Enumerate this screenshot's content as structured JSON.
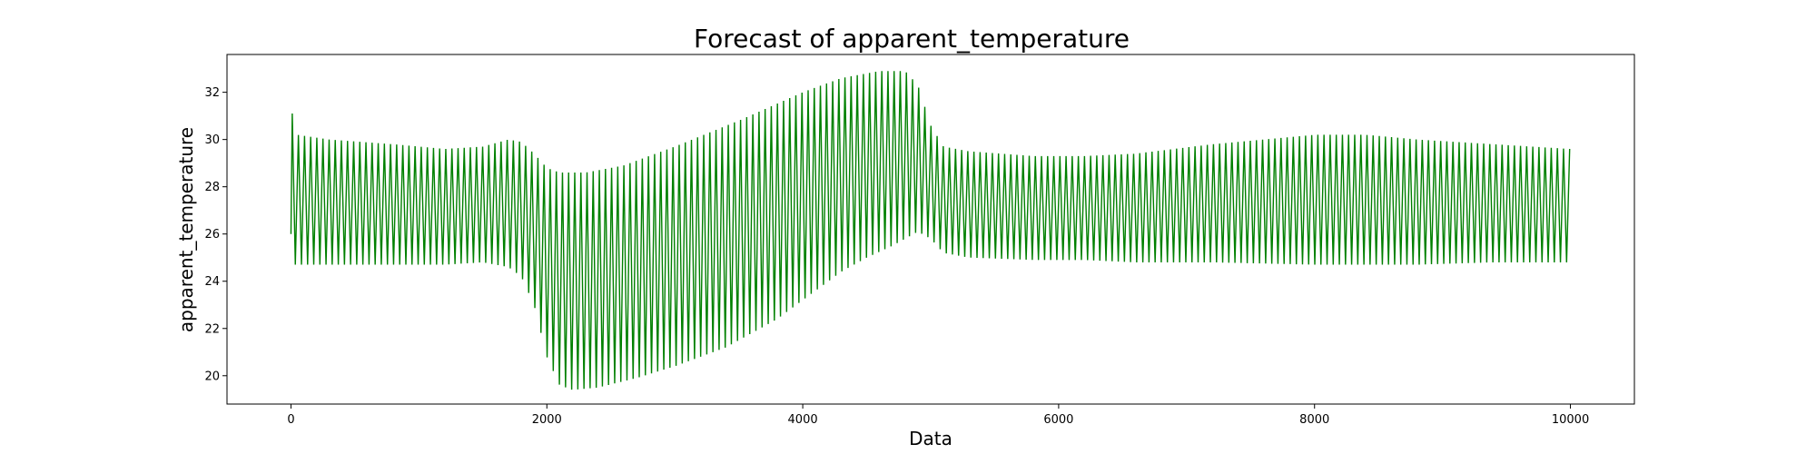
{
  "chart_data": {
    "type": "line",
    "title": "Forecast of apparent_temperature",
    "xlabel": "Data",
    "ylabel": "apparent_temperature",
    "xlim": [
      -500,
      10500
    ],
    "ylim": [
      18.8,
      33.6
    ],
    "x_ticks": [
      0,
      2000,
      4000,
      6000,
      8000,
      10000
    ],
    "x_tick_labels": [
      "0",
      "2000",
      "4000",
      "6000",
      "8000",
      "10000"
    ],
    "y_ticks": [
      20,
      22,
      24,
      26,
      28,
      30,
      32
    ],
    "y_tick_labels": [
      "20",
      "22",
      "24",
      "26",
      "28",
      "30",
      "32"
    ],
    "grid": false,
    "legend": "none",
    "series": [
      {
        "color": "#008000",
        "oscillation_period": 48,
        "upper_envelope": {
          "x": [
            0,
            10,
            30,
            50,
            300,
            800,
            1200,
            1500,
            1700,
            1800,
            1900,
            2000,
            2100,
            2300,
            2600,
            3000,
            3500,
            4000,
            4300,
            4600,
            4800,
            4900,
            5000,
            5100,
            5300,
            5800,
            6200,
            6600,
            7200,
            8000,
            8400,
            8800,
            9400,
            10000
          ],
          "y": [
            26.0,
            31.1,
            30.3,
            30.2,
            30.0,
            29.8,
            29.6,
            29.7,
            30.0,
            29.9,
            29.4,
            28.8,
            28.6,
            28.6,
            28.9,
            29.7,
            30.8,
            32.0,
            32.6,
            32.9,
            32.9,
            32.3,
            30.6,
            29.7,
            29.5,
            29.3,
            29.3,
            29.4,
            29.8,
            30.2,
            30.2,
            30.0,
            29.8,
            29.6
          ]
        },
        "lower_envelope": {
          "x": [
            0,
            10,
            30,
            50,
            300,
            800,
            1200,
            1500,
            1700,
            1800,
            1900,
            2000,
            2100,
            2200,
            2400,
            2700,
            3000,
            3400,
            3800,
            4100,
            4300,
            4500,
            4700,
            4800,
            4900,
            5000,
            5100,
            5300,
            5800,
            6200,
            6600,
            7200,
            8000,
            8400,
            8800,
            9400,
            10000
          ],
          "y": [
            26.0,
            24.6,
            24.7,
            24.7,
            24.7,
            24.7,
            24.7,
            24.8,
            24.6,
            24.2,
            23.0,
            20.8,
            19.6,
            19.4,
            19.5,
            19.9,
            20.4,
            21.2,
            22.4,
            23.6,
            24.4,
            25.0,
            25.5,
            25.8,
            26.1,
            25.8,
            25.2,
            25.0,
            24.9,
            24.9,
            24.8,
            24.8,
            24.7,
            24.7,
            24.7,
            24.8,
            24.8
          ]
        }
      }
    ]
  }
}
